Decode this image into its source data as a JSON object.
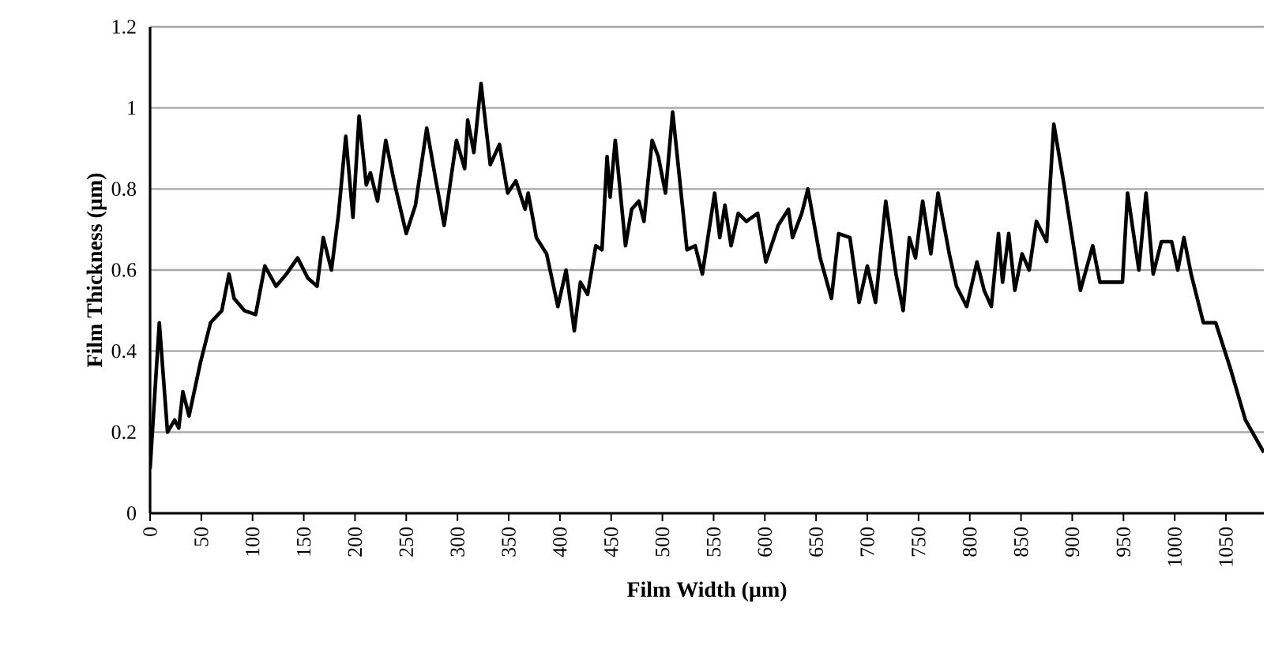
{
  "chart_data": {
    "type": "line",
    "xlabel": "Film Width (µm)",
    "ylabel": "Film Thickness (µm)",
    "xlim": [
      0,
      1087
    ],
    "ylim": [
      0,
      1.2
    ],
    "xticks": [
      0,
      50,
      100,
      150,
      200,
      250,
      300,
      350,
      400,
      450,
      500,
      550,
      600,
      650,
      700,
      750,
      800,
      850,
      900,
      950,
      1000,
      1050
    ],
    "yticks": [
      0,
      0.2,
      0.4,
      0.6,
      0.8,
      1,
      1.2
    ],
    "grid": "y",
    "marker": "none",
    "line_style": "solid",
    "x": [
      0,
      9,
      17,
      24,
      28,
      32,
      38,
      49,
      59,
      70,
      77,
      82,
      92,
      103,
      112,
      123,
      133,
      144,
      154,
      163,
      169,
      177,
      184,
      191,
      198,
      204,
      211,
      215,
      222,
      230,
      238,
      250,
      259,
      270,
      279,
      287,
      299,
      307,
      310,
      316,
      323,
      332,
      341,
      349,
      357,
      366,
      369,
      377,
      387,
      398,
      406,
      414,
      420,
      427,
      435,
      441,
      446,
      449,
      454,
      464,
      470,
      477,
      482,
      490,
      496,
      503,
      510,
      524,
      532,
      539,
      551,
      556,
      561,
      567,
      574,
      582,
      593,
      601,
      613,
      623,
      627,
      636,
      642,
      654,
      665,
      672,
      683,
      692,
      700,
      708,
      718,
      728,
      735,
      741,
      747,
      754,
      762,
      769,
      780,
      787,
      797,
      807,
      814,
      821,
      828,
      832,
      838,
      844,
      851,
      858,
      865,
      875,
      882,
      892,
      908,
      920,
      927,
      941,
      949,
      954,
      965,
      972,
      979,
      987,
      997,
      1003,
      1009,
      1016,
      1028,
      1040,
      1054,
      1069,
      1087
    ],
    "series": [
      {
        "color": "#000000",
        "values": [
          0.11,
          0.47,
          0.2,
          0.23,
          0.21,
          0.3,
          0.24,
          0.37,
          0.47,
          0.5,
          0.59,
          0.53,
          0.5,
          0.49,
          0.61,
          0.56,
          0.59,
          0.63,
          0.58,
          0.56,
          0.68,
          0.6,
          0.74,
          0.93,
          0.73,
          0.98,
          0.81,
          0.84,
          0.77,
          0.92,
          0.82,
          0.69,
          0.76,
          0.95,
          0.82,
          0.71,
          0.92,
          0.85,
          0.97,
          0.89,
          1.06,
          0.86,
          0.91,
          0.79,
          0.82,
          0.75,
          0.79,
          0.68,
          0.64,
          0.51,
          0.6,
          0.45,
          0.57,
          0.54,
          0.66,
          0.65,
          0.88,
          0.78,
          0.92,
          0.66,
          0.75,
          0.77,
          0.72,
          0.92,
          0.88,
          0.79,
          0.99,
          0.65,
          0.66,
          0.59,
          0.79,
          0.68,
          0.76,
          0.66,
          0.74,
          0.72,
          0.74,
          0.62,
          0.71,
          0.75,
          0.68,
          0.74,
          0.8,
          0.63,
          0.53,
          0.69,
          0.68,
          0.52,
          0.61,
          0.52,
          0.77,
          0.59,
          0.5,
          0.68,
          0.63,
          0.77,
          0.64,
          0.79,
          0.64,
          0.56,
          0.51,
          0.62,
          0.55,
          0.51,
          0.69,
          0.57,
          0.69,
          0.55,
          0.64,
          0.6,
          0.72,
          0.67,
          0.96,
          0.81,
          0.55,
          0.66,
          0.57,
          0.57,
          0.57,
          0.79,
          0.6,
          0.79,
          0.59,
          0.67,
          0.67,
          0.6,
          0.68,
          0.59,
          0.47,
          0.47,
          0.36,
          0.23,
          0.15
        ]
      }
    ]
  }
}
